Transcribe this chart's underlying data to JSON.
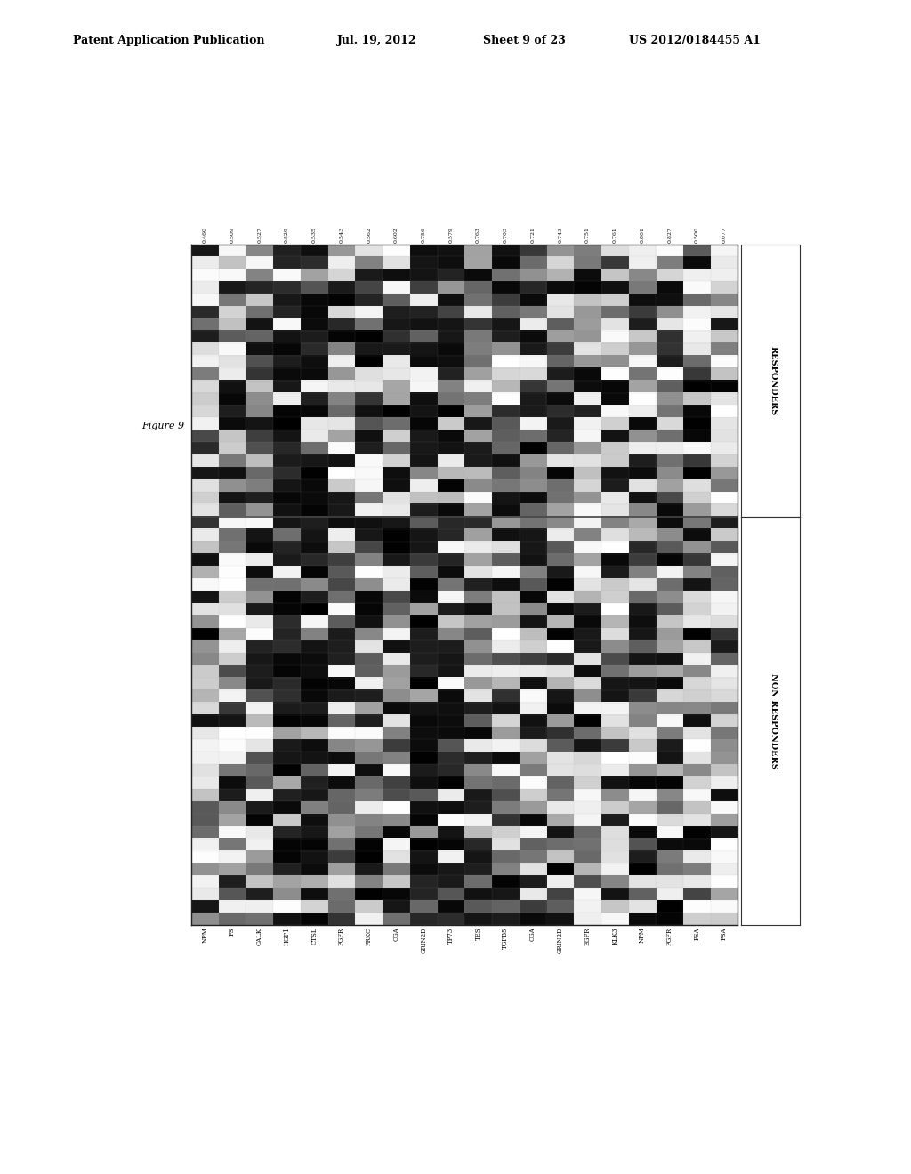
{
  "title_header": "Patent Application Publication",
  "date": "Jul. 19, 2012",
  "sheet": "Sheet 9 of 23",
  "patent_num": "US 2012/0184455 A1",
  "figure_label": "Figure 9",
  "col_labels": [
    "0.460",
    "0.509",
    "0.527",
    "0.529",
    "0.535",
    "0.543",
    "0.562",
    "0.602",
    "0.756",
    "0.579",
    "0.763",
    "0.703",
    "0.721",
    "0.743",
    "0.751",
    "0.761",
    "0.801",
    "0.827",
    "0.500",
    "0.077"
  ],
  "row_labels_x": [
    "NPM",
    "PS",
    "CALK",
    "HGF1",
    "CTSL",
    "FGFR",
    "PRKC",
    "CGA",
    "GRIN2D",
    "TP73",
    "TES",
    "TGFB5",
    "CGA",
    "GRIN2D",
    "EGFR",
    "KLK3",
    "NPM",
    "FGFR",
    "PSA",
    "PSA"
  ],
  "n_rows": 55,
  "n_cols": 20,
  "responders_rows": 22,
  "background_color": "#ffffff",
  "heatmap_seed": 7
}
